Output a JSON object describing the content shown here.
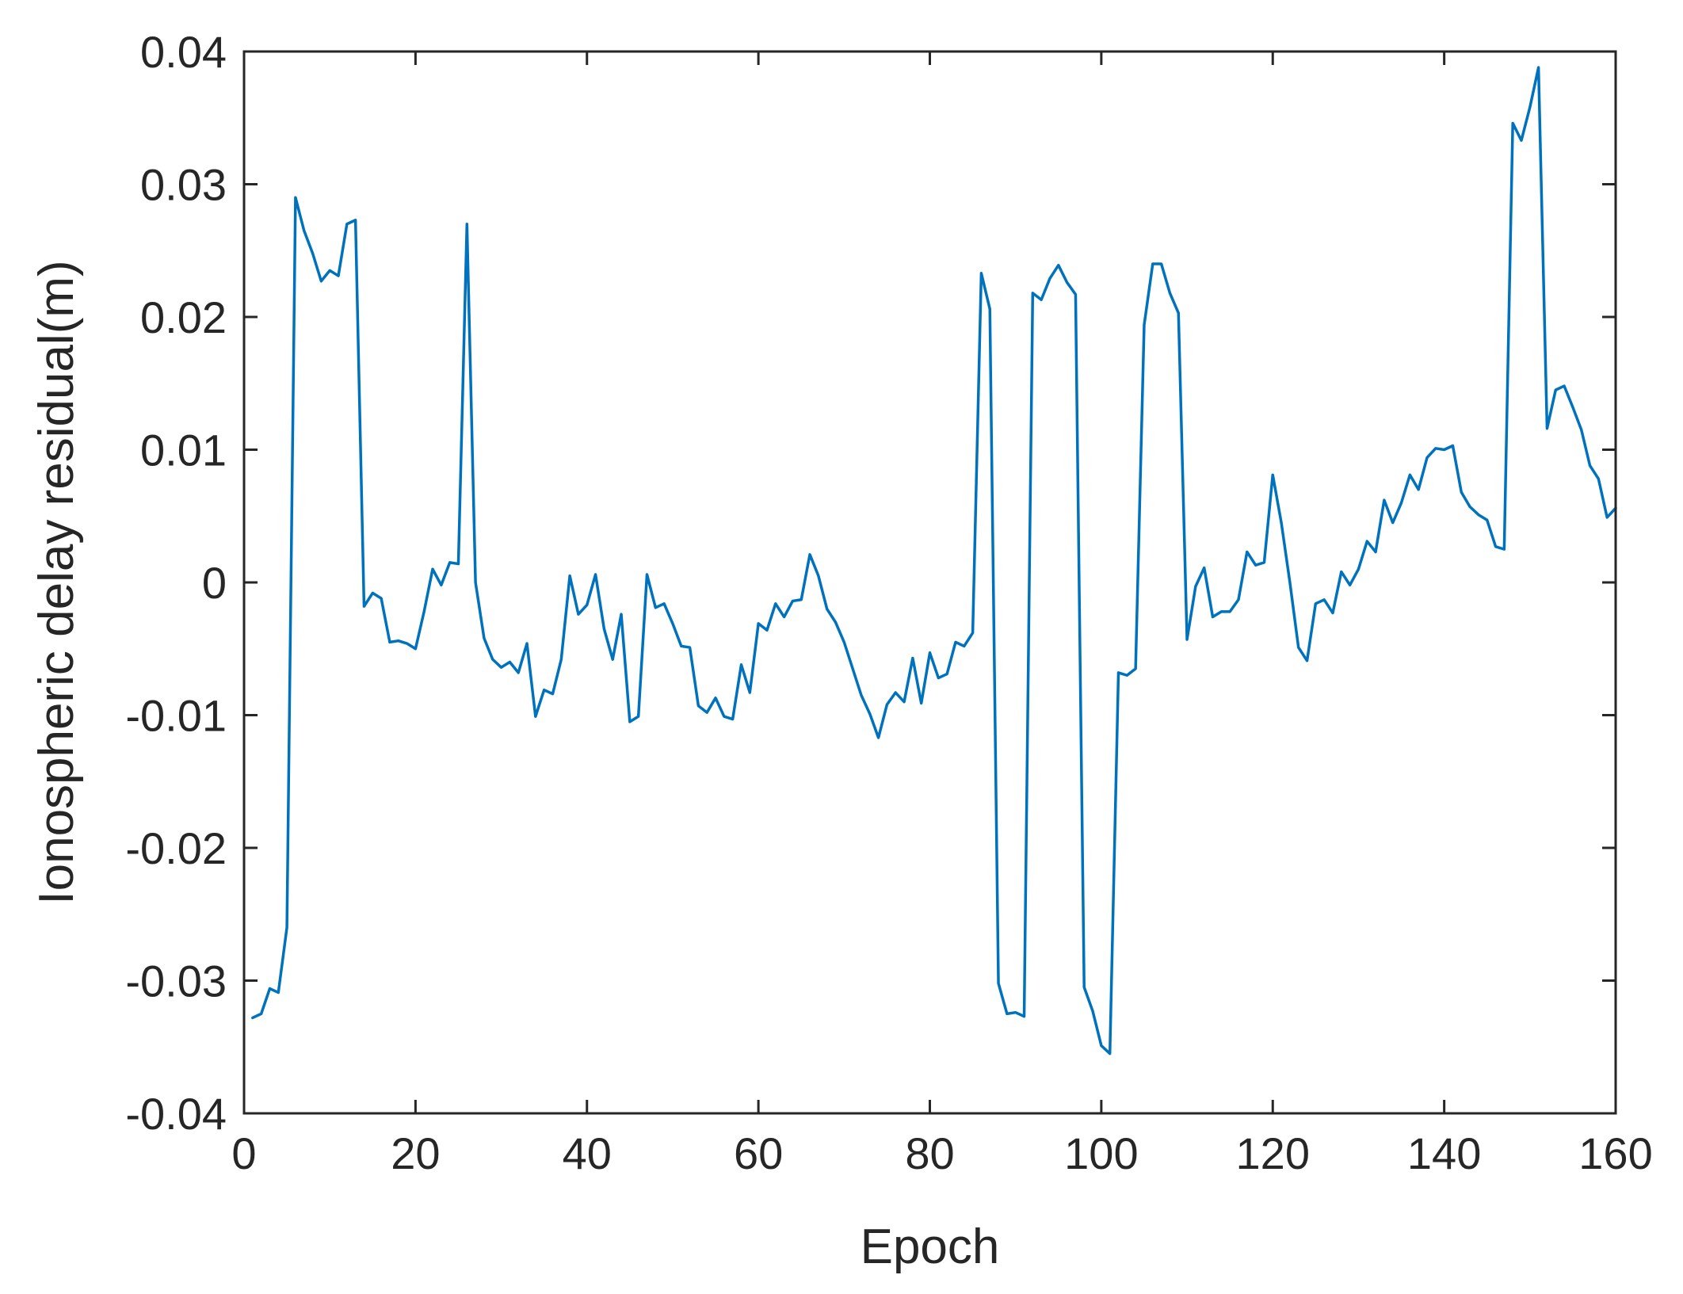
{
  "chart_data": {
    "type": "line",
    "title": "",
    "xlabel": "Epoch",
    "ylabel": "Ionospheric delay residual(m)",
    "xlim": [
      0,
      160
    ],
    "ylim": [
      -0.04,
      0.04
    ],
    "xticks": [
      0,
      20,
      40,
      60,
      80,
      100,
      120,
      140,
      160
    ],
    "xtick_labels": [
      "0",
      "20",
      "40",
      "60",
      "80",
      "100",
      "120",
      "140",
      "160"
    ],
    "yticks": [
      -0.04,
      -0.03,
      -0.02,
      -0.01,
      0,
      0.01,
      0.02,
      0.03,
      0.04
    ],
    "ytick_labels": [
      "-0.04",
      "-0.03",
      "-0.02",
      "-0.01",
      "0",
      "0.01",
      "0.02",
      "0.03",
      "0.04"
    ],
    "grid": false,
    "legend": "none",
    "series": [
      {
        "color": "#0072BD",
        "x": [
          1,
          2,
          3,
          4,
          5,
          6,
          7,
          8,
          9,
          10,
          11,
          12,
          13,
          14,
          15,
          16,
          17,
          18,
          19,
          20,
          21,
          22,
          23,
          24,
          25,
          26,
          27,
          28,
          29,
          30,
          31,
          32,
          33,
          34,
          35,
          36,
          37,
          38,
          39,
          40,
          41,
          42,
          43,
          44,
          45,
          46,
          47,
          48,
          49,
          50,
          51,
          52,
          53,
          54,
          55,
          56,
          57,
          58,
          59,
          60,
          61,
          62,
          63,
          64,
          65,
          66,
          67,
          68,
          69,
          70,
          71,
          72,
          73,
          74,
          75,
          76,
          77,
          78,
          79,
          80,
          81,
          82,
          83,
          84,
          85,
          86,
          87,
          88,
          89,
          90,
          91,
          92,
          93,
          94,
          95,
          96,
          97,
          98,
          99,
          100,
          101,
          102,
          103,
          104,
          105,
          106,
          107,
          108,
          109,
          110,
          111,
          112,
          113,
          114,
          115,
          116,
          117,
          118,
          119,
          120,
          121,
          122,
          123,
          124,
          125,
          126,
          127,
          128,
          129,
          130,
          131,
          132,
          133,
          134,
          135,
          136,
          137,
          138,
          139,
          140,
          141,
          142,
          143,
          144,
          145,
          146,
          147,
          148,
          149,
          150,
          151,
          152,
          153,
          154,
          155,
          156,
          157,
          158,
          159,
          160
        ],
        "y": [
          -0.0328,
          -0.0325,
          -0.0306,
          -0.0309,
          -0.026,
          0.029,
          0.0265,
          0.0248,
          0.0227,
          0.0235,
          0.0231,
          0.027,
          0.0273,
          -0.0018,
          -0.0008,
          -0.0012,
          -0.0045,
          -0.0044,
          -0.0046,
          -0.005,
          -0.0022,
          0.001,
          -0.0002,
          0.0015,
          0.0014,
          0.027,
          0.0,
          -0.0042,
          -0.0058,
          -0.0064,
          -0.006,
          -0.0068,
          -0.0046,
          -0.0101,
          -0.0081,
          -0.0084,
          -0.0058,
          0.0005,
          -0.0024,
          -0.0017,
          0.0006,
          -0.0035,
          -0.0058,
          -0.0024,
          -0.0105,
          -0.0101,
          0.0006,
          -0.0019,
          -0.0016,
          -0.0031,
          -0.0048,
          -0.0049,
          -0.0093,
          -0.0098,
          -0.0087,
          -0.0101,
          -0.0103,
          -0.0062,
          -0.0083,
          -0.0031,
          -0.0036,
          -0.0016,
          -0.0026,
          -0.0014,
          -0.0013,
          0.0021,
          0.0005,
          -0.002,
          -0.003,
          -0.0045,
          -0.0065,
          -0.0085,
          -0.0099,
          -0.0117,
          -0.0092,
          -0.0083,
          -0.009,
          -0.0057,
          -0.0091,
          -0.0053,
          -0.0072,
          -0.0069,
          -0.0045,
          -0.0048,
          -0.0038,
          0.0233,
          0.0206,
          -0.0302,
          -0.0325,
          -0.0324,
          -0.0327,
          0.0218,
          0.0213,
          0.0229,
          0.0239,
          0.0226,
          0.0217,
          -0.0305,
          -0.0323,
          -0.0349,
          -0.0355,
          -0.0068,
          -0.007,
          -0.0065,
          0.0194,
          0.024,
          0.024,
          0.0218,
          0.0203,
          -0.0043,
          -0.0003,
          0.0011,
          -0.0026,
          -0.0022,
          -0.0022,
          -0.0013,
          0.0023,
          0.0013,
          0.0015,
          0.0081,
          0.0045,
          0.0,
          -0.0049,
          -0.0059,
          -0.0016,
          -0.0013,
          -0.0023,
          0.0008,
          -0.0002,
          0.001,
          0.0031,
          0.0023,
          0.0062,
          0.0045,
          0.006,
          0.0081,
          0.007,
          0.0094,
          0.0101,
          0.01,
          0.0103,
          0.0068,
          0.0057,
          0.0051,
          0.0047,
          0.0027,
          0.0025,
          0.0346,
          0.0333,
          0.0358,
          0.0388,
          0.0116,
          0.0145,
          0.0148,
          0.0132,
          0.0115,
          0.0088,
          0.0078,
          0.0049,
          0.0056
        ]
      }
    ]
  }
}
